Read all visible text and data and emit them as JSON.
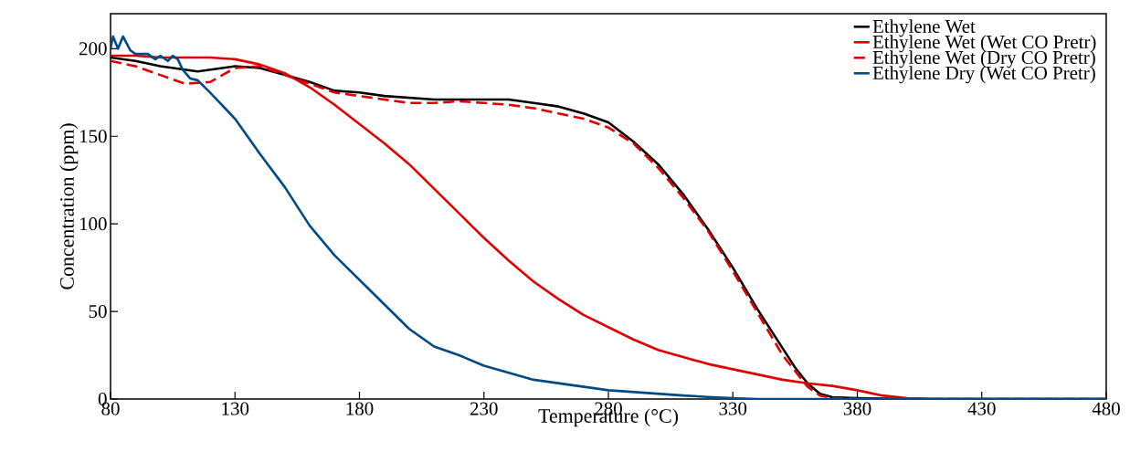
{
  "chart_data": {
    "type": "line",
    "xlabel": "Temperature (°C)",
    "ylabel": "Concentration (ppm)",
    "xlim": [
      80,
      480
    ],
    "ylim": [
      0,
      220
    ],
    "xticks": [
      80,
      130,
      180,
      230,
      280,
      330,
      380,
      430,
      480
    ],
    "yticks": [
      0,
      50,
      100,
      150,
      200
    ],
    "legend": "top right",
    "series": [
      {
        "name": "Ethylene Wet",
        "color": "#000000",
        "line_style": "solid",
        "x": [
          80,
          90,
          100,
          110,
          115,
          120,
          125,
          130,
          140,
          150,
          160,
          170,
          180,
          190,
          200,
          210,
          220,
          230,
          240,
          250,
          260,
          270,
          280,
          290,
          300,
          310,
          320,
          330,
          340,
          350,
          355,
          360,
          365,
          370,
          380,
          400,
          480
        ],
        "values": [
          195,
          193,
          190,
          188,
          187,
          188,
          189,
          190,
          189,
          185,
          181,
          176,
          175,
          173,
          172,
          171,
          171,
          171,
          171,
          169,
          167,
          163,
          158,
          147,
          134,
          117,
          97,
          75,
          51,
          29,
          18,
          9,
          3,
          1,
          0.5,
          0,
          0
        ]
      },
      {
        "name": "Ethylene Wet (Wet CO Pretr)",
        "color": "#e00000",
        "line_style": "solid",
        "x": [
          80,
          90,
          100,
          110,
          120,
          130,
          140,
          150,
          160,
          170,
          180,
          190,
          200,
          210,
          220,
          230,
          240,
          250,
          260,
          270,
          280,
          290,
          300,
          310,
          320,
          330,
          340,
          350,
          360,
          370,
          380,
          390,
          400,
          410,
          480
        ],
        "values": [
          196,
          196,
          195,
          195,
          195,
          194,
          191,
          186,
          178,
          168,
          157,
          146,
          134,
          120,
          106,
          92,
          79,
          67,
          57,
          48,
          41,
          34,
          28,
          24,
          20,
          17,
          14,
          11,
          9,
          7.5,
          5,
          2,
          0.5,
          0,
          0
        ]
      },
      {
        "name": "Ethylene Wet (Dry CO Pretr)",
        "color": "#e00000",
        "line_style": "dashed",
        "x": [
          80,
          90,
          100,
          110,
          120,
          125,
          130,
          140,
          150,
          160,
          170,
          180,
          190,
          200,
          210,
          220,
          230,
          240,
          250,
          260,
          270,
          280,
          290,
          300,
          310,
          320,
          330,
          340,
          350,
          360,
          365,
          370,
          380,
          480
        ],
        "values": [
          193,
          190,
          185,
          180,
          181,
          185,
          189,
          190,
          185,
          180,
          175,
          173,
          171,
          169,
          169,
          170,
          169,
          168,
          166,
          163,
          160,
          155,
          146,
          132,
          115,
          96,
          73,
          49,
          25,
          7,
          2,
          0.5,
          0,
          0
        ]
      },
      {
        "name": "Ethylene Dry (Wet CO Pretr)",
        "color": "#004a85",
        "line_style": "solid",
        "x": [
          80,
          81,
          83,
          85,
          88,
          90,
          95,
          98,
          100,
          103,
          105,
          107,
          109,
          112,
          115,
          120,
          130,
          140,
          150,
          160,
          170,
          180,
          190,
          200,
          210,
          220,
          230,
          240,
          250,
          260,
          270,
          280,
          290,
          300,
          310,
          320,
          330,
          340,
          480
        ],
        "values": [
          200,
          207,
          200,
          207,
          199,
          197,
          197,
          194,
          196,
          193,
          196,
          194,
          188,
          183,
          182,
          175,
          160,
          140,
          121,
          99,
          82,
          68,
          54,
          40,
          30,
          25,
          19,
          15,
          11,
          9,
          7,
          5,
          4,
          3,
          2,
          1.2,
          0.5,
          0,
          0
        ]
      }
    ]
  }
}
